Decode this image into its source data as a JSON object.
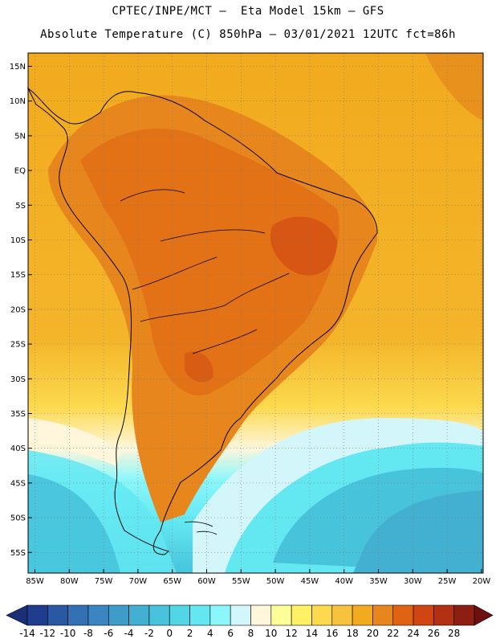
{
  "title": {
    "line1": "CPTEC/INPE/MCT –  Eta Model 15km – GFS",
    "line2": "Absolute Temperature (C) 850hPa – 03/01/2021 12UTC fct=86h"
  },
  "map": {
    "lat_labels": [
      "15N",
      "10N",
      "5N",
      "EQ",
      "5S",
      "10S",
      "15S",
      "20S",
      "25S",
      "30S",
      "35S",
      "40S",
      "45S",
      "50S",
      "55S"
    ],
    "lon_labels": [
      "85W",
      "80W",
      "75W",
      "70W",
      "65W",
      "60W",
      "55W",
      "50W",
      "45W",
      "40W",
      "35W",
      "30W",
      "25W",
      "20W"
    ]
  },
  "colorbar": {
    "labels": [
      "-14",
      "-12",
      "-10",
      "-8",
      "-6",
      "-4",
      "-2",
      "0",
      "2",
      "4",
      "6",
      "8",
      "10",
      "12",
      "14",
      "16",
      "18",
      "20",
      "22",
      "24",
      "26",
      "28"
    ],
    "colors": [
      "#1f3d8c",
      "#2a58a3",
      "#3370b4",
      "#3b86c2",
      "#3f9cc9",
      "#43b0d2",
      "#47c3dc",
      "#52d6e6",
      "#63e8f2",
      "#8cf7fa",
      "#d3f6fb",
      "#fff6dc",
      "#ffff99",
      "#fff066",
      "#fcd94d",
      "#f7c33e",
      "#f2aa1e",
      "#e6861c",
      "#e06314",
      "#d04512",
      "#b43012",
      "#8c1f12"
    ],
    "under_color": "#1a2f75",
    "over_color": "#6e0f10"
  }
}
